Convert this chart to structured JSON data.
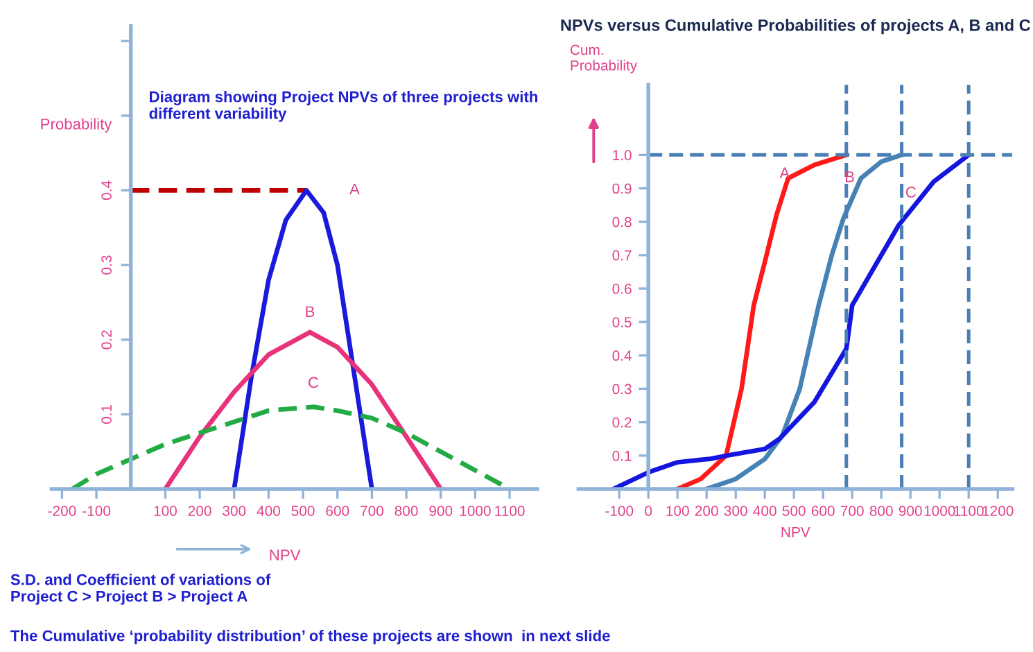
{
  "chart_data": [
    {
      "type": "line",
      "title": "Diagram showing Project NPVs of three projects with\ndifferent variability",
      "xlabel": "NPV",
      "ylabel": "Probability",
      "xlim": [
        -230,
        1180
      ],
      "ylim": [
        0,
        0.62
      ],
      "xticks": [
        -200,
        -100,
        100,
        200,
        300,
        400,
        500,
        600,
        700,
        800,
        900,
        1000,
        1100
      ],
      "yticks": [
        0.1,
        0.2,
        0.3,
        0.4,
        {
          "value": 0.5,
          "label": null
        },
        {
          "value": 0.6,
          "label": null
        }
      ],
      "grid": false,
      "legend": false,
      "series": [
        {
          "color": "#c00000",
          "line_style": "dashed",
          "x": [
            0,
            510
          ],
          "values": [
            0.4,
            0.4
          ]
        },
        {
          "name": "A",
          "color": "#1a1adb",
          "line_style": "solid",
          "x": [
            300,
            350,
            400,
            450,
            510,
            560,
            600,
            650,
            700
          ],
          "values": [
            0,
            0.15,
            0.28,
            0.36,
            0.4,
            0.37,
            0.3,
            0.15,
            0
          ]
        },
        {
          "name": "B",
          "color": "#e8337a",
          "line_style": "solid",
          "x": [
            100,
            200,
            300,
            400,
            520,
            600,
            700,
            800,
            900
          ],
          "values": [
            0,
            0.07,
            0.13,
            0.18,
            0.21,
            0.19,
            0.14,
            0.07,
            0
          ]
        },
        {
          "name": "C",
          "color": "#22aa44",
          "line_style": "dashed",
          "x": [
            -170,
            -100,
            0,
            100,
            200,
            300,
            400,
            530,
            600,
            700,
            800,
            900,
            1000,
            1100
          ],
          "values": [
            0,
            0.02,
            0.04,
            0.06,
            0.075,
            0.09,
            0.105,
            0.11,
            0.105,
            0.095,
            0.075,
            0.05,
            0.025,
            0
          ]
        }
      ],
      "annotations": [
        "S.D. and Coefficient of variations of\nProject C > Project B > Project A",
        "The Cumulative ‘probability distribution’ of these projects are shown  in next slide"
      ]
    },
    {
      "type": "line",
      "title": "NPVs versus Cumulative Probabilities of projects A, B and C",
      "xlabel": "NPV",
      "ylabel": "Cum.\nProbability",
      "xlim": [
        -240,
        1250
      ],
      "ylim": [
        0,
        1.21
      ],
      "xticks": [
        -100,
        0,
        100,
        200,
        300,
        400,
        500,
        600,
        700,
        800,
        900,
        1000,
        1100,
        1200
      ],
      "yticks": [
        0.1,
        0.2,
        0.3,
        0.4,
        0.5,
        0.6,
        0.7,
        0.8,
        0.9,
        {
          "value": 1.0,
          "label": "1.0"
        }
      ],
      "grid": false,
      "legend": false,
      "ref_lines": [
        {
          "axis": "y",
          "value": 1.0,
          "color": "#4a7fb5",
          "line_style": "dashed"
        },
        {
          "axis": "x",
          "value": 680,
          "color": "#4a7fb5",
          "line_style": "dashed"
        },
        {
          "axis": "x",
          "value": 870,
          "color": "#4a7fb5",
          "line_style": "dashed"
        },
        {
          "axis": "x",
          "value": 1100,
          "color": "#4a7fb5",
          "line_style": "dashed"
        }
      ],
      "series": [
        {
          "name": "A",
          "color": "#ff1a1a",
          "line_style": "solid",
          "x": [
            100,
            180,
            267,
            320,
            362,
            400,
            440,
            480,
            570,
            680
          ],
          "values": [
            0,
            0.03,
            0.1,
            0.3,
            0.55,
            0.68,
            0.82,
            0.93,
            0.97,
            1.0
          ]
        },
        {
          "name": "B",
          "color": "#4682b4",
          "line_style": "solid",
          "x": [
            200,
            300,
            400,
            460,
            520,
            585,
            630,
            670,
            730,
            800,
            870
          ],
          "values": [
            0,
            0.03,
            0.09,
            0.16,
            0.3,
            0.55,
            0.7,
            0.81,
            0.93,
            0.98,
            1.0
          ]
        },
        {
          "name": "C",
          "color": "#1515e0",
          "line_style": "solid",
          "x": [
            -120,
            0,
            100,
            210,
            270,
            400,
            450,
            570,
            680,
            700,
            860,
            980,
            1100
          ],
          "values": [
            0,
            0.05,
            0.08,
            0.09,
            0.1,
            0.12,
            0.15,
            0.26,
            0.42,
            0.55,
            0.79,
            0.92,
            1.0
          ]
        }
      ]
    }
  ]
}
